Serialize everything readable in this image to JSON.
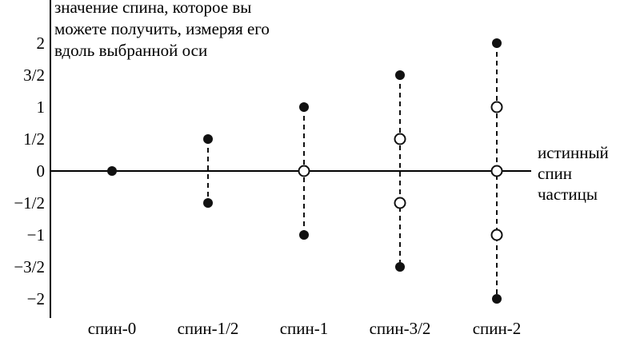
{
  "chart_data": {
    "type": "scatter",
    "title_lines": [
      "значение спина, которое вы",
      "можете получить, измеряя его",
      "вдоль выбранной оси"
    ],
    "axis_label_lines": [
      "истинный",
      "спин",
      "частицы"
    ],
    "ylim": [
      -2,
      2
    ],
    "y_ticks": [
      {
        "value": 2,
        "label": "2"
      },
      {
        "value": 1.5,
        "label": "3/2"
      },
      {
        "value": 1,
        "label": "1"
      },
      {
        "value": 0.5,
        "label": "1/2"
      },
      {
        "value": 0,
        "label": "0"
      },
      {
        "value": -0.5,
        "label": "−1/2"
      },
      {
        "value": -1,
        "label": "−1"
      },
      {
        "value": -1.5,
        "label": "−3/2"
      },
      {
        "value": -2,
        "label": "−2"
      }
    ],
    "categories": [
      "спин-0",
      "спин-1/2",
      "спин-1",
      "спин-3/2",
      "спин-2"
    ],
    "points": [
      [
        {
          "y": 0,
          "filled": true
        }
      ],
      [
        {
          "y": 0.5,
          "filled": true
        },
        {
          "y": -0.5,
          "filled": true
        }
      ],
      [
        {
          "y": 1,
          "filled": true
        },
        {
          "y": 0,
          "filled": false
        },
        {
          "y": -1,
          "filled": true
        }
      ],
      [
        {
          "y": 1.5,
          "filled": true
        },
        {
          "y": 0.5,
          "filled": false
        },
        {
          "y": -0.5,
          "filled": false
        },
        {
          "y": -1.5,
          "filled": true
        }
      ],
      [
        {
          "y": 2,
          "filled": true
        },
        {
          "y": 1,
          "filled": false
        },
        {
          "y": 0,
          "filled": false
        },
        {
          "y": -1,
          "filled": false
        },
        {
          "y": -2,
          "filled": true
        }
      ]
    ],
    "colors": {
      "marker": "#111111",
      "axis": "#000000",
      "dash": "#111111"
    }
  }
}
